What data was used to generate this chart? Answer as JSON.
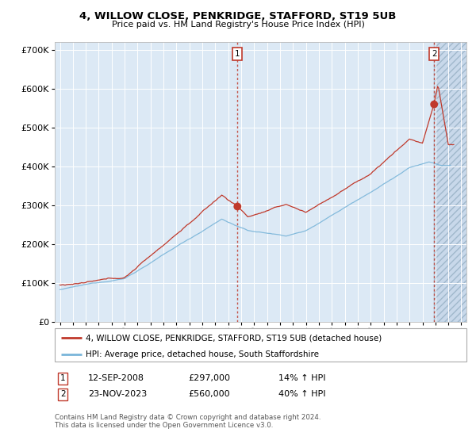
{
  "title": "4, WILLOW CLOSE, PENKRIDGE, STAFFORD, ST19 5UB",
  "subtitle": "Price paid vs. HM Land Registry's House Price Index (HPI)",
  "hpi_label": "HPI: Average price, detached house, South Staffordshire",
  "property_label": "4, WILLOW CLOSE, PENKRIDGE, STAFFORD, ST19 5UB (detached house)",
  "sale1_date": "12-SEP-2008",
  "sale1_price": 297000,
  "sale1_pct": "14% ↑ HPI",
  "sale1_year": 2008.71,
  "sale2_date": "23-NOV-2023",
  "sale2_price": 560000,
  "sale2_pct": "40% ↑ HPI",
  "sale2_year": 2023.9,
  "footer": "Contains HM Land Registry data © Crown copyright and database right 2024.\nThis data is licensed under the Open Government Licence v3.0.",
  "hpi_color": "#7ab5d9",
  "property_color": "#c0392b",
  "bg_color": "#dce9f5",
  "hatch_color": "#c8d8ea",
  "ylim": [
    0,
    720000
  ],
  "yticks": [
    0,
    100000,
    200000,
    300000,
    400000,
    500000,
    600000,
    700000
  ],
  "xlim_start": 1994.6,
  "xlim_end": 2026.4,
  "hatch_start": 2023.9
}
